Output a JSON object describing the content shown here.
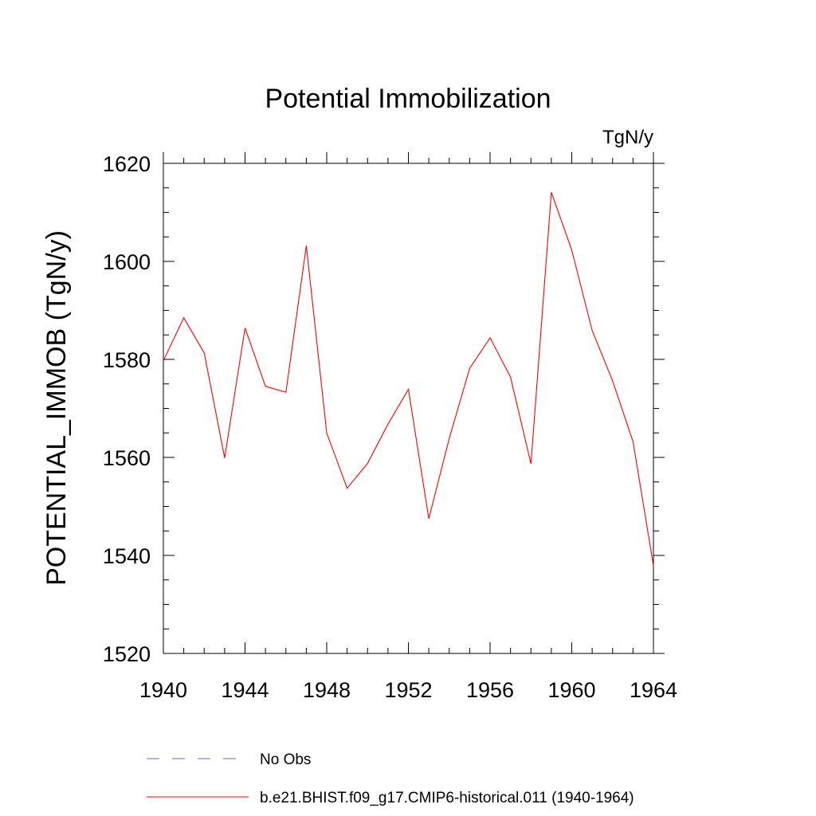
{
  "chart_data": {
    "type": "line",
    "title": "Potential Immobilization",
    "units_label": "TgN/y",
    "ylabel": "POTENTIAL_IMMOB  (TgN/y)",
    "xlabel": "",
    "xlim": [
      1940,
      1964
    ],
    "ylim": [
      1520,
      1620
    ],
    "x_ticks": [
      1940,
      1944,
      1948,
      1952,
      1956,
      1960,
      1964
    ],
    "y_ticks": [
      1520,
      1540,
      1560,
      1580,
      1600,
      1620
    ],
    "grid": false,
    "legend_position": "bottom",
    "series": [
      {
        "name": "b.e21.BHIST.f09_g17.CMIP6-historical.011 (1940-1964)",
        "color": "#ff0000",
        "style": "solid",
        "x": [
          1940,
          1941,
          1942,
          1943,
          1944,
          1945,
          1946,
          1947,
          1948,
          1949,
          1950,
          1951,
          1952,
          1953,
          1954,
          1955,
          1956,
          1957,
          1958,
          1959,
          1960,
          1961,
          1962,
          1963,
          1964
        ],
        "y": [
          1579.7,
          1588.5,
          1581.3,
          1559.9,
          1586.4,
          1574.5,
          1573.3,
          1603.2,
          1565.0,
          1553.7,
          1558.8,
          1566.8,
          1573.9,
          1547.5,
          1563.9,
          1578.2,
          1584.4,
          1576.4,
          1558.7,
          1614.1,
          1602.3,
          1585.9,
          1575.6,
          1563.2,
          1537.9
        ]
      }
    ],
    "legend": [
      {
        "label": "No Obs",
        "color": "#6a6ab8",
        "style": "dashed"
      },
      {
        "label": "b.e21.BHIST.f09_g17.CMIP6-historical.011 (1940-1964)",
        "color": "#ff0000",
        "style": "solid"
      }
    ]
  }
}
